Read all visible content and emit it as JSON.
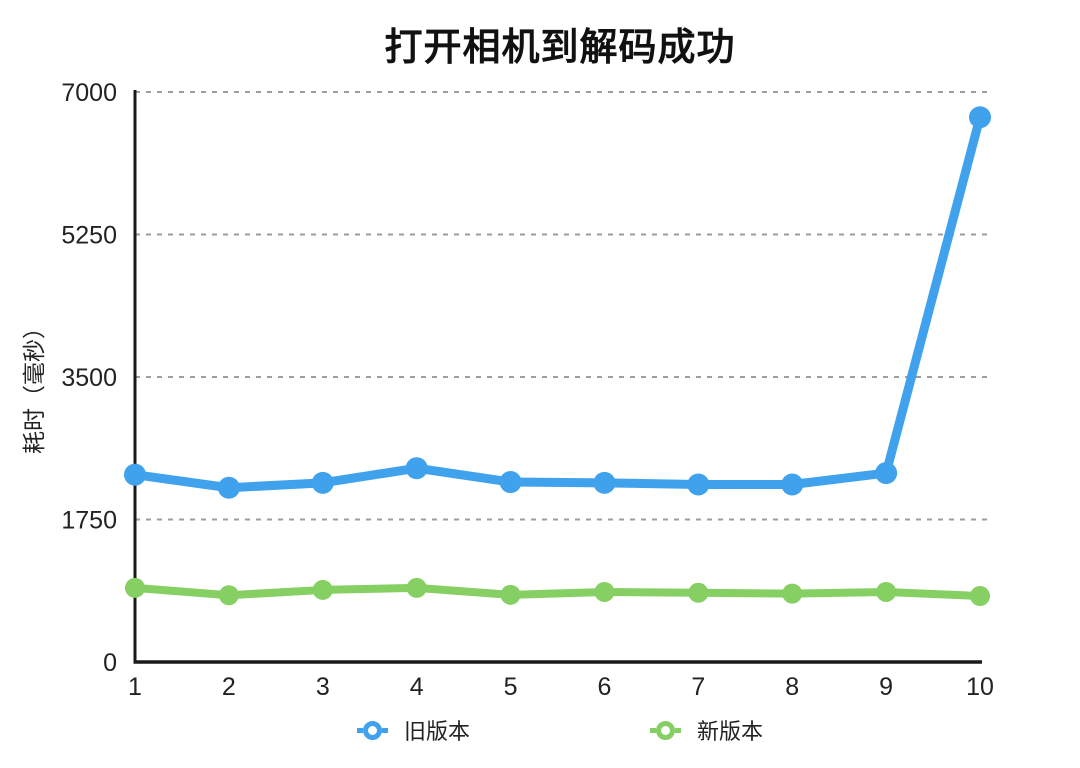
{
  "chart_data": {
    "type": "line",
    "title": "打开相机到解码成功",
    "ylabel": "耗时（毫秒）",
    "xlabel": "",
    "x": [
      1,
      2,
      3,
      4,
      5,
      6,
      7,
      8,
      9,
      10
    ],
    "xtick_labels": [
      "1",
      "2",
      "3",
      "4",
      "5",
      "6",
      "7",
      "8",
      "9",
      "10"
    ],
    "ytick_values": [
      0,
      1750,
      3500,
      5250,
      7000
    ],
    "ytick_labels": [
      "0",
      "1750",
      "3500",
      "5250",
      "7000"
    ],
    "ylim": [
      0,
      7000
    ],
    "grid": "horizontal-dashed",
    "legend_position": "bottom-center",
    "colors": {
      "axis": "#1a1a1a",
      "gridline": "#9e9e9e",
      "tick_text": "#222222",
      "background": "#ffffff"
    },
    "series": [
      {
        "name": "旧版本",
        "color": "#40a2ec",
        "values": [
          2300,
          2140,
          2200,
          2380,
          2210,
          2200,
          2180,
          2180,
          2320,
          6690
        ]
      },
      {
        "name": "新版本",
        "color": "#85cf63",
        "values": [
          910,
          820,
          885,
          910,
          825,
          860,
          850,
          840,
          860,
          810
        ]
      }
    ]
  }
}
